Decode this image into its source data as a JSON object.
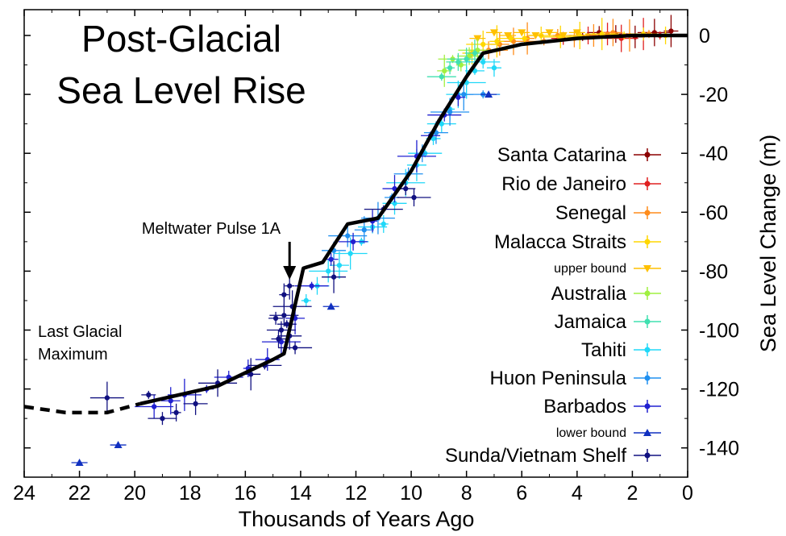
{
  "chart_data": {
    "type": "scatter",
    "title_lines": [
      "Post-Glacial",
      "Sea Level Rise"
    ],
    "xlabel": "Thousands of Years Ago",
    "ylabel": "Sea Level Change (m)",
    "xlim": [
      24,
      0
    ],
    "ylim": [
      -150,
      5
    ],
    "x_ticks": [
      24,
      22,
      20,
      18,
      16,
      14,
      12,
      10,
      8,
      6,
      4,
      2,
      0
    ],
    "y_ticks": [
      0,
      -20,
      -40,
      -60,
      -80,
      -100,
      -120,
      -140
    ],
    "grid": false,
    "legend_position": "right",
    "trend_line": {
      "solid": [
        [
          19.8,
          -125
        ],
        [
          17,
          -119
        ],
        [
          15,
          -110
        ],
        [
          14.6,
          -108
        ],
        [
          13.9,
          -79
        ],
        [
          13.2,
          -77
        ],
        [
          12.3,
          -64
        ],
        [
          11.2,
          -62
        ],
        [
          10,
          -46
        ],
        [
          9,
          -29
        ],
        [
          8,
          -14
        ],
        [
          7.4,
          -6
        ],
        [
          6,
          -3
        ],
        [
          4,
          -1
        ],
        [
          2,
          0
        ],
        [
          0,
          0
        ]
      ],
      "dashed": [
        [
          24,
          -126
        ],
        [
          22.5,
          -128
        ],
        [
          21,
          -128
        ],
        [
          19.8,
          -125
        ]
      ]
    },
    "annotations": [
      {
        "text": "Meltwater Pulse 1A",
        "x": 14.4,
        "y": -72
      },
      {
        "text_lines": [
          "Last Glacial",
          "Maximum"
        ],
        "x": 23.7,
        "y": -110
      }
    ],
    "series": [
      {
        "name": "Santa Catarina",
        "color": "#8b0000",
        "marker": "dot",
        "legend_size": "large",
        "points": [
          [
            3.8,
            -0.5
          ],
          [
            3.2,
            1
          ],
          [
            2.6,
            0.5
          ],
          [
            1.9,
            -0.5
          ],
          [
            1.2,
            1
          ],
          [
            0.6,
            1.5
          ]
        ]
      },
      {
        "name": "Rio de Janeiro",
        "color": "#e02020",
        "marker": "dot",
        "legend_size": "large",
        "points": [
          [
            4.5,
            -1
          ],
          [
            3.6,
            0
          ],
          [
            2.9,
            0.5
          ],
          [
            2.4,
            -1
          ],
          [
            1.6,
            0.5
          ],
          [
            1.0,
            0
          ]
        ]
      },
      {
        "name": "Senegal",
        "color": "#ff8c1a",
        "marker": "dot",
        "legend_size": "large",
        "points": [
          [
            7.2,
            -5
          ],
          [
            6.8,
            -3
          ],
          [
            6.3,
            -2
          ],
          [
            5.8,
            -1
          ],
          [
            5.2,
            -2
          ],
          [
            4.7,
            0
          ],
          [
            4.1,
            -1
          ],
          [
            3.4,
            0
          ],
          [
            2.7,
            1
          ],
          [
            2.1,
            0
          ],
          [
            1.4,
            0.5
          ]
        ]
      },
      {
        "name": "Malacca Straits",
        "color": "#ffd700",
        "marker": "dot",
        "legend_size": "large",
        "points": [
          [
            7.8,
            -6
          ],
          [
            7.4,
            -3
          ],
          [
            6.9,
            -2
          ],
          [
            6.4,
            -1
          ],
          [
            5.9,
            -1
          ],
          [
            5.3,
            0
          ],
          [
            4.6,
            -0.5
          ],
          [
            3.9,
            0
          ],
          [
            3.1,
            0.5
          ],
          [
            2.3,
            0
          ],
          [
            1.6,
            0.5
          ],
          [
            0.8,
            0
          ]
        ]
      },
      {
        "name": "upper bound",
        "color": "#ffc000",
        "marker": "triangle-down",
        "legend_size": "small",
        "points": [
          [
            7.6,
            -1
          ],
          [
            7.0,
            1
          ],
          [
            6.5,
            0
          ],
          [
            6.0,
            1
          ],
          [
            5.5,
            0
          ],
          [
            5.0,
            1
          ],
          [
            4.5,
            0
          ],
          [
            4.0,
            1
          ]
        ]
      },
      {
        "name": "Australia",
        "color": "#a0f040",
        "marker": "dot",
        "legend_size": "large",
        "points": [
          [
            8.8,
            -12
          ],
          [
            8.5,
            -8
          ],
          [
            8.2,
            -10
          ],
          [
            7.9,
            -7
          ],
          [
            7.6,
            -5
          ]
        ]
      },
      {
        "name": "Jamaica",
        "color": "#40e0b0",
        "marker": "dot",
        "legend_size": "large",
        "points": [
          [
            8.9,
            -14
          ],
          [
            8.6,
            -11
          ],
          [
            8.3,
            -9
          ],
          [
            8.0,
            -8
          ],
          [
            7.7,
            -6
          ]
        ]
      },
      {
        "name": "Tahiti",
        "color": "#20d8f8",
        "marker": "dot",
        "legend_size": "large",
        "points": [
          [
            13.8,
            -90
          ],
          [
            13.4,
            -85
          ],
          [
            13.0,
            -80
          ],
          [
            12.6,
            -78
          ],
          [
            12.2,
            -74
          ],
          [
            11.8,
            -70
          ],
          [
            11.4,
            -65
          ],
          [
            11.0,
            -64
          ],
          [
            10.6,
            -57
          ],
          [
            10.2,
            -50
          ],
          [
            9.8,
            -44
          ],
          [
            9.5,
            -40
          ],
          [
            9.2,
            -35
          ],
          [
            8.9,
            -30
          ],
          [
            8.6,
            -25
          ],
          [
            8.3,
            -20
          ],
          [
            8.0,
            -16
          ],
          [
            7.7,
            -12
          ],
          [
            7.4,
            -9
          ],
          [
            7.0,
            -11
          ]
        ]
      },
      {
        "name": "Huon Peninsula",
        "color": "#2090f0",
        "marker": "dot",
        "legend_size": "large",
        "points": [
          [
            12.8,
            -73
          ],
          [
            12.3,
            -68
          ],
          [
            11.7,
            -66
          ],
          [
            11.2,
            -62
          ],
          [
            10.7,
            -55
          ],
          [
            10.1,
            -47
          ],
          [
            9.6,
            -40
          ],
          [
            9.1,
            -33
          ],
          [
            8.6,
            -26
          ],
          [
            8.1,
            -20
          ],
          [
            7.4,
            -20
          ]
        ]
      },
      {
        "name": "Barbados",
        "color": "#2020d0",
        "marker": "dot",
        "legend_size": "large",
        "points": [
          [
            19.3,
            -126
          ],
          [
            18.7,
            -124
          ],
          [
            18.2,
            -122
          ],
          [
            17.4,
            -120
          ],
          [
            16.6,
            -116
          ],
          [
            15.9,
            -113
          ],
          [
            15.2,
            -110
          ],
          [
            14.7,
            -104
          ],
          [
            14.2,
            -96
          ],
          [
            13.6,
            -85
          ],
          [
            12.9,
            -76
          ],
          [
            12.1,
            -70
          ],
          [
            11.4,
            -63
          ],
          [
            10.6,
            -52
          ],
          [
            9.8,
            -41
          ],
          [
            9.3,
            -34
          ],
          [
            8.8,
            -27
          ],
          [
            8.3,
            -21
          ]
        ]
      },
      {
        "name": "lower bound",
        "color": "#1030c0",
        "marker": "triangle-up",
        "legend_size": "small",
        "points": [
          [
            22.0,
            -145
          ],
          [
            20.6,
            -139
          ],
          [
            12.9,
            -92
          ],
          [
            7.2,
            -20
          ]
        ]
      },
      {
        "name": "Sunda/Vietnam Shelf",
        "color": "#101080",
        "marker": "dot",
        "legend_size": "large",
        "points": [
          [
            21.0,
            -123
          ],
          [
            19.5,
            -122
          ],
          [
            19.0,
            -130
          ],
          [
            18.5,
            -128
          ],
          [
            17.8,
            -125
          ],
          [
            17.0,
            -118
          ],
          [
            15.8,
            -115
          ],
          [
            15.3,
            -112
          ],
          [
            14.9,
            -96
          ],
          [
            14.7,
            -100
          ],
          [
            14.6,
            -88
          ],
          [
            14.4,
            -102
          ],
          [
            14.3,
            -92
          ],
          [
            14.5,
            -98
          ],
          [
            14.2,
            -106
          ],
          [
            14.8,
            -103
          ],
          [
            14.6,
            -95
          ],
          [
            14.4,
            -85
          ],
          [
            12.8,
            -82
          ],
          [
            11.0,
            -59
          ],
          [
            10.2,
            -52
          ],
          [
            9.9,
            -55
          ]
        ]
      }
    ]
  }
}
